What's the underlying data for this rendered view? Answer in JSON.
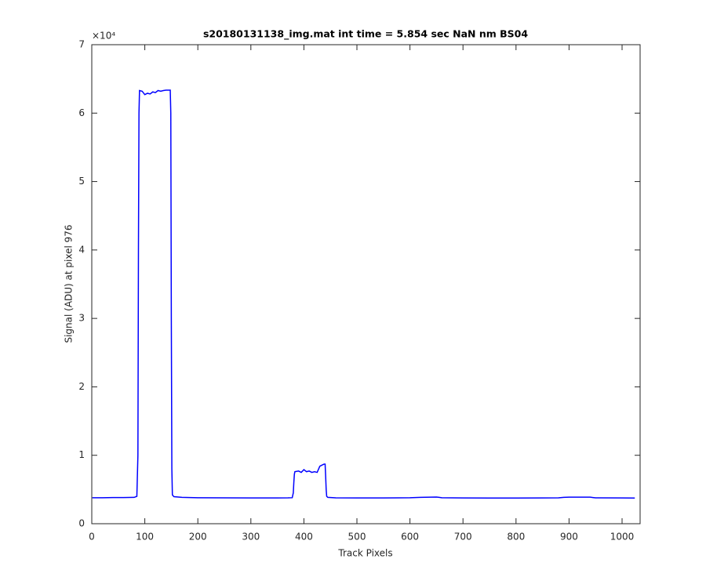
{
  "chart_data": {
    "type": "line",
    "title": "s20180131138_img.mat int time = 5.854 sec  NaN nm BS04",
    "x_label": "Track Pixels",
    "y_label": "Signal (ADU) at pixel 976",
    "y_multiplier": "×10⁴",
    "xlim": [
      0,
      1034
    ],
    "ylim": [
      0,
      70000
    ],
    "xticks": [
      0,
      100,
      200,
      300,
      400,
      500,
      600,
      700,
      800,
      900,
      1000
    ],
    "yticks": [
      0,
      {
        "value": 10000,
        "label": "1"
      },
      {
        "value": 20000,
        "label": "2"
      },
      {
        "value": 30000,
        "label": "3"
      },
      {
        "value": 40000,
        "label": "4"
      },
      {
        "value": 50000,
        "label": "5"
      },
      {
        "value": 60000,
        "label": "6"
      },
      {
        "value": 70000,
        "label": "7"
      }
    ],
    "grid": false,
    "x": [
      1,
      20,
      40,
      60,
      80,
      85,
      87,
      88,
      89,
      90,
      95,
      100,
      105,
      110,
      115,
      120,
      125,
      130,
      135,
      140,
      145,
      148,
      149,
      150,
      151,
      152,
      155,
      170,
      200,
      250,
      300,
      350,
      370,
      378,
      380,
      381,
      382,
      383,
      390,
      395,
      400,
      405,
      410,
      415,
      420,
      425,
      430,
      435,
      438,
      440,
      441,
      442,
      443,
      445,
      460,
      500,
      550,
      600,
      620,
      640,
      650,
      655,
      660,
      700,
      750,
      800,
      850,
      880,
      890,
      900,
      920,
      940,
      945,
      950,
      1000,
      1024
    ],
    "series": [
      {
        "color": "#0000ff",
        "values": [
          3800,
          3800,
          3820,
          3830,
          3850,
          4000,
          10000,
          40000,
          60000,
          63300,
          63200,
          62700,
          62900,
          62800,
          63100,
          63000,
          63300,
          63200,
          63300,
          63350,
          63350,
          63350,
          60000,
          30000,
          8000,
          4200,
          3950,
          3850,
          3800,
          3780,
          3770,
          3770,
          3780,
          3800,
          4500,
          6000,
          7200,
          7600,
          7700,
          7500,
          7900,
          7600,
          7700,
          7500,
          7600,
          7500,
          8400,
          8600,
          8700,
          8700,
          7000,
          5000,
          4000,
          3850,
          3780,
          3760,
          3760,
          3800,
          3850,
          3880,
          3900,
          3850,
          3800,
          3760,
          3750,
          3750,
          3760,
          3780,
          3850,
          3880,
          3880,
          3880,
          3830,
          3780,
          3760,
          3750
        ]
      }
    ]
  }
}
